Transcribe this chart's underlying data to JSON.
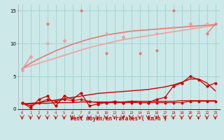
{
  "x": [
    0,
    1,
    2,
    3,
    4,
    5,
    6,
    7,
    8,
    9,
    10,
    11,
    12,
    13,
    14,
    15,
    16,
    17,
    18,
    19,
    20,
    21,
    22,
    23
  ],
  "pink_zigzag": [
    6,
    8,
    null,
    13,
    null,
    10.5,
    null,
    15,
    null,
    null,
    8.5,
    null,
    11,
    null,
    8.5,
    null,
    9,
    null,
    15,
    null,
    13,
    null,
    11.5,
    13
  ],
  "pink_smooth": [
    6,
    8,
    null,
    10,
    null,
    10.5,
    null,
    null,
    null,
    null,
    11.5,
    null,
    11,
    null,
    null,
    null,
    11.5,
    null,
    12.5,
    null,
    13,
    null,
    13,
    null
  ],
  "pink_trend_lo": [
    6.2,
    6.6,
    7.0,
    7.4,
    7.8,
    8.2,
    8.6,
    9.0,
    9.4,
    9.7,
    10.0,
    10.3,
    10.6,
    10.8,
    11.0,
    11.2,
    11.4,
    11.6,
    11.8,
    12.0,
    12.2,
    12.4,
    12.6,
    12.8
  ],
  "pink_trend_hi": [
    6.2,
    7.0,
    7.7,
    8.3,
    8.9,
    9.4,
    9.9,
    10.3,
    10.7,
    11.0,
    11.3,
    11.5,
    11.7,
    11.9,
    12.0,
    12.1,
    12.2,
    12.3,
    12.4,
    12.5,
    12.6,
    12.7,
    12.8,
    12.9
  ],
  "red_flat": [
    1.0,
    0.5,
    1.0,
    1.5,
    1.2,
    1.5,
    1.3,
    1.5,
    1.2,
    1.0,
    1.0,
    1.0,
    1.0,
    1.0,
    1.0,
    1.0,
    1.0,
    1.0,
    1.0,
    1.0,
    1.2,
    1.2,
    1.2,
    1.2
  ],
  "red_zigzag": [
    1.0,
    0.2,
    1.5,
    2.0,
    0.5,
    2.0,
    1.5,
    2.5,
    0.5,
    0.8,
    1.0,
    1.2,
    1.0,
    1.2,
    1.0,
    1.0,
    1.5,
    1.8,
    3.5,
    4.0,
    5.0,
    4.5,
    3.5,
    4.0
  ],
  "red_trend_lo": [
    0.8,
    0.8,
    0.9,
    0.9,
    1.0,
    1.0,
    1.0,
    1.1,
    1.1,
    1.1,
    1.1,
    1.1,
    1.1,
    1.2,
    1.2,
    1.2,
    1.2,
    1.2,
    1.2,
    1.3,
    1.3,
    1.3,
    1.3,
    1.3
  ],
  "red_trend_hi": [
    0.8,
    0.9,
    1.0,
    1.2,
    1.4,
    1.6,
    1.8,
    2.0,
    2.2,
    2.4,
    2.5,
    2.6,
    2.7,
    2.8,
    2.9,
    3.0,
    3.2,
    3.4,
    3.7,
    4.1,
    4.6,
    4.6,
    4.0,
    2.8
  ],
  "ylim": [
    0,
    16
  ],
  "yticks": [
    0,
    5,
    10,
    15
  ],
  "xticks": [
    0,
    1,
    2,
    3,
    4,
    5,
    6,
    7,
    8,
    9,
    10,
    11,
    12,
    13,
    14,
    15,
    16,
    17,
    18,
    19,
    20,
    21,
    22,
    23
  ],
  "xlabel": "Vent moyen/en rafales ( km/h )",
  "bg_color": "#cce8e8",
  "grid_color": "#99cccc",
  "salmon_color": "#e87878",
  "pink_color": "#f0a0a0",
  "red_color": "#cc0000"
}
